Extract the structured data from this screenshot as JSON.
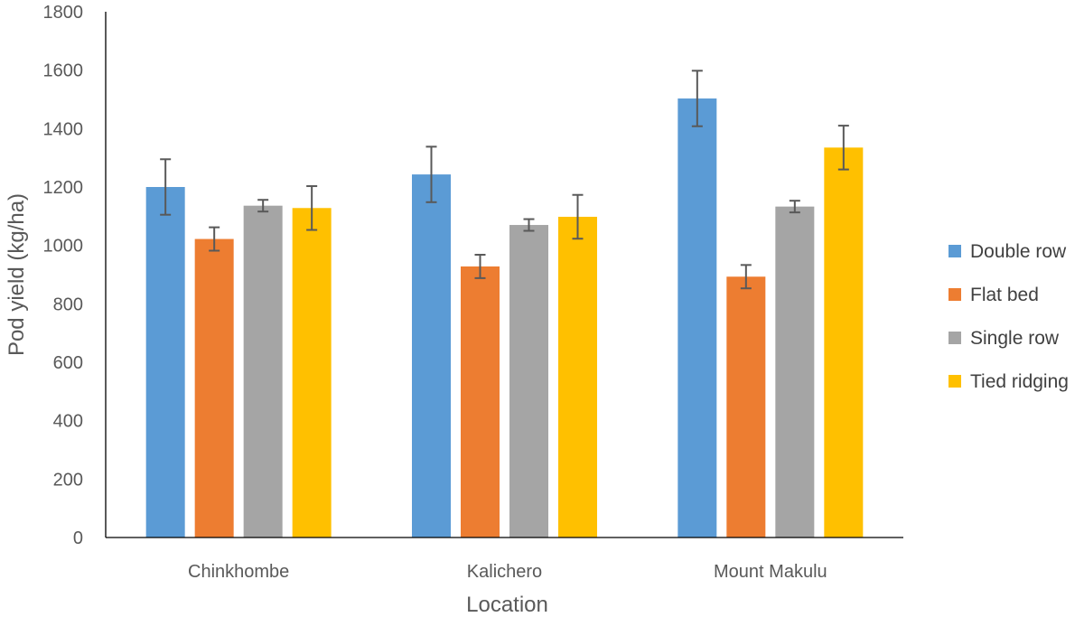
{
  "chart_data": {
    "type": "bar",
    "title": "",
    "xlabel": "Location",
    "ylabel": "Pod yield (kg/ha)",
    "ylim": [
      0,
      1800
    ],
    "yticks": [
      0,
      200,
      400,
      600,
      800,
      1000,
      1200,
      1400,
      1600,
      1800
    ],
    "grid": false,
    "legend_position": "right",
    "categories": [
      "Chinkhombe",
      "Kalichero",
      "Mount Makulu"
    ],
    "series": [
      {
        "name": "Double row",
        "color": "#5B9BD5",
        "values": [
          1200,
          1243,
          1503
        ],
        "errors": [
          95,
          95,
          95
        ]
      },
      {
        "name": "Flat bed",
        "color": "#ED7D31",
        "values": [
          1022,
          928,
          893
        ],
        "errors": [
          40,
          40,
          40
        ]
      },
      {
        "name": "Single row",
        "color": "#A5A5A5",
        "values": [
          1136,
          1070,
          1133
        ],
        "errors": [
          20,
          20,
          20
        ]
      },
      {
        "name": "Tied ridging",
        "color": "#FFC000",
        "values": [
          1128,
          1098,
          1335
        ],
        "errors": [
          75,
          75,
          75
        ]
      }
    ]
  }
}
